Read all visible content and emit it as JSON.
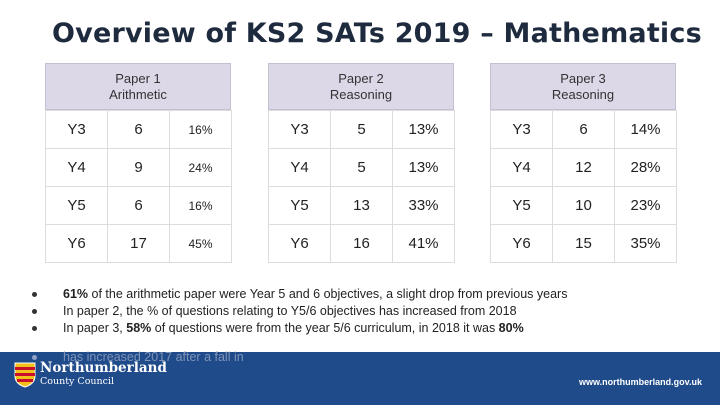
{
  "title": "Overview of KS2 SATs 2019 – Mathematics",
  "papers": [
    {
      "header_line1": "Paper 1",
      "header_line2": "Arithmetic",
      "rows": [
        {
          "year": "Y3",
          "count": "6",
          "pct": "16%"
        },
        {
          "year": "Y4",
          "count": "9",
          "pct": "24%"
        },
        {
          "year": "Y5",
          "count": "6",
          "pct": "16%"
        },
        {
          "year": "Y6",
          "count": "17",
          "pct": "45%"
        }
      ]
    },
    {
      "header_line1": "Paper 2",
      "header_line2": "Reasoning",
      "rows": [
        {
          "year": "Y3",
          "count": "5",
          "pct": "13%"
        },
        {
          "year": "Y4",
          "count": "5",
          "pct": "13%"
        },
        {
          "year": "Y5",
          "count": "13",
          "pct": "33%"
        },
        {
          "year": "Y6",
          "count": "16",
          "pct": "41%"
        }
      ]
    },
    {
      "header_line1": "Paper 3",
      "header_line2": "Reasoning",
      "rows": [
        {
          "year": "Y3",
          "count": "6",
          "pct": "14%"
        },
        {
          "year": "Y4",
          "count": "12",
          "pct": "28%"
        },
        {
          "year": "Y5",
          "count": "10",
          "pct": "23%"
        },
        {
          "year": "Y6",
          "count": "15",
          "pct": "35%"
        }
      ]
    }
  ],
  "bullets": {
    "b1_bold": "61%",
    "b1_text": " of the arithmetic paper were Year 5 and 6 objectives, a slight drop from previous years",
    "b2_text": "In paper 2, the % of questions relating to Y5/6 objectives has increased from 2018",
    "b3_text_a": "In paper 3, ",
    "b3_bold_a": "58%",
    "b3_text_b": " of questions were from the year 5/6 curriculum, in 2018 it was ",
    "b3_bold_b": "80%",
    "b4_text": "has increased 2017 after a fall in"
  },
  "footer": {
    "org_name": "Northumberland",
    "org_sub": "County Council",
    "url": "www.northumberland.gov.uk"
  },
  "colors": {
    "header_bg": "#ddd8e8",
    "footer_bg": "#1f4b8a"
  }
}
